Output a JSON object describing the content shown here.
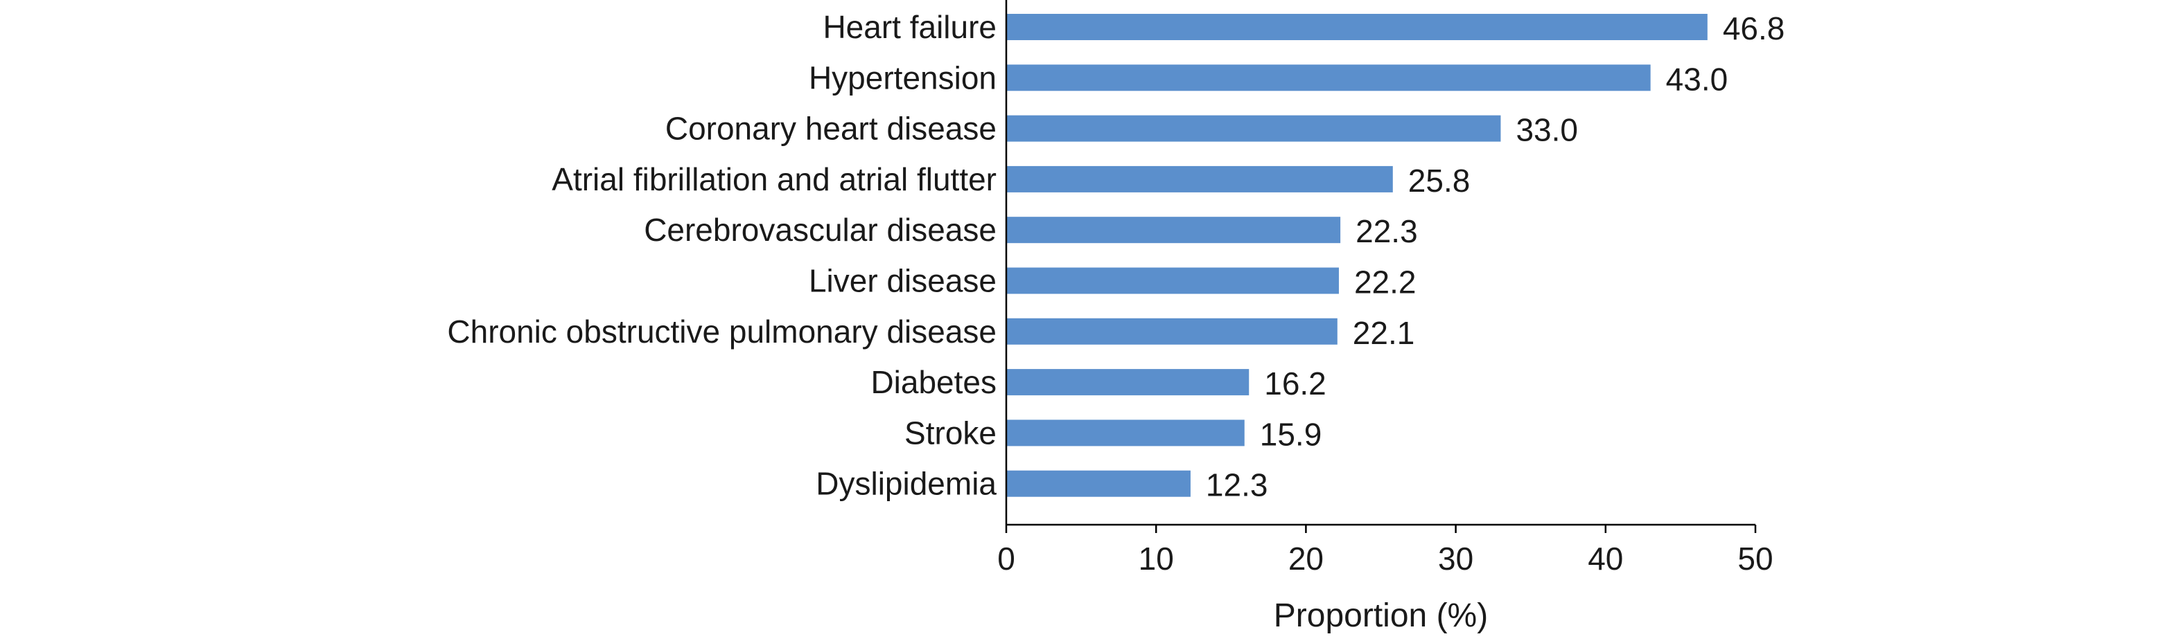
{
  "chart_data": {
    "type": "bar",
    "orientation": "horizontal",
    "title": "",
    "xlabel": "Proportion (%)",
    "ylabel": "",
    "categories": [
      "Heart failure",
      "Hypertension",
      "Coronary heart disease",
      "Atrial fibrillation and atrial flutter",
      "Cerebrovascular disease",
      "Liver disease",
      "Chronic obstructive pulmonary disease",
      "Diabetes",
      "Stroke",
      "Dyslipidemia"
    ],
    "values": [
      46.8,
      43.0,
      33.0,
      25.8,
      22.3,
      22.2,
      22.1,
      16.2,
      15.9,
      12.3
    ],
    "value_labels": [
      "46.8",
      "43.0",
      "33.0",
      "25.8",
      "22.3",
      "22.2",
      "22.1",
      "16.2",
      "15.9",
      "12.3"
    ],
    "xlim": [
      0,
      50
    ],
    "xticks": [
      "0",
      "10",
      "20",
      "30",
      "40",
      "50"
    ],
    "grid": false,
    "legend": "none",
    "bar_color": "#5B8FCC"
  }
}
